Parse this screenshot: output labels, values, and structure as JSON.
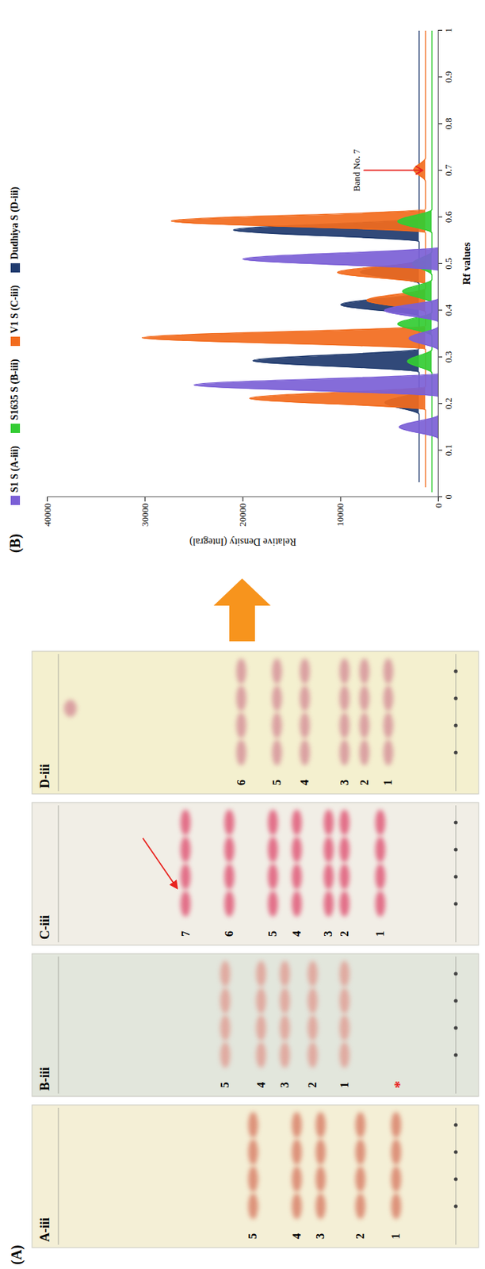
{
  "panel_a": {
    "label": "(A)",
    "plates": [
      {
        "label": "A-iii",
        "background": "#f4efd6",
        "color": "#d9826a",
        "bands": [
          {
            "label": "1",
            "rf": 0.15
          },
          {
            "label": "2",
            "rf": 0.24
          },
          {
            "label": "3",
            "rf": 0.34
          },
          {
            "label": "4",
            "rf": 0.4
          },
          {
            "label": "5",
            "rf": 0.51
          }
        ]
      },
      {
        "label": "B-iii",
        "background": "#e2e6dc",
        "color": "#e0a096",
        "bands": [
          {
            "label": "1",
            "rf": 0.28
          },
          {
            "label": "2",
            "rf": 0.36
          },
          {
            "label": "3",
            "rf": 0.43
          },
          {
            "label": "4",
            "rf": 0.49
          },
          {
            "label": "5",
            "rf": 0.58
          }
        ],
        "asterisk": {
          "text": "*",
          "rf": 0.15
        }
      },
      {
        "label": "C-iii",
        "background": "#f1eee6",
        "color": "#e05a78",
        "bands": [
          {
            "label": "1",
            "rf": 0.19
          },
          {
            "label": "2",
            "rf": 0.28
          },
          {
            "label": "3",
            "rf": 0.32
          },
          {
            "label": "4",
            "rf": 0.4
          },
          {
            "label": "5",
            "rf": 0.46
          },
          {
            "label": "6",
            "rf": 0.57
          },
          {
            "label": "7",
            "rf": 0.68
          }
        ],
        "arrow_to_band": "7"
      },
      {
        "label": "D-iii",
        "background": "#f4f0cf",
        "color": "#d6939a",
        "bands": [
          {
            "label": "1",
            "rf": 0.17
          },
          {
            "label": "2",
            "rf": 0.23
          },
          {
            "label": "3",
            "rf": 0.28
          },
          {
            "label": "4",
            "rf": 0.38
          },
          {
            "label": "5",
            "rf": 0.45
          },
          {
            "label": "6",
            "rf": 0.54
          }
        ],
        "spots": [
          0.97
        ]
      }
    ]
  },
  "chart_data": {
    "type": "area",
    "panel_label": "(B)",
    "x_label": "Rf values",
    "y_label": "Relative Density (Integral)",
    "xlim": [
      0,
      1
    ],
    "ylim": [
      0,
      40000
    ],
    "xticks": [
      0,
      0.1,
      0.2,
      0.3,
      0.4,
      0.5,
      0.6,
      0.7,
      0.8,
      0.9,
      1
    ],
    "yticks": [
      0,
      10000,
      20000,
      30000,
      40000
    ],
    "grid": false,
    "legend": "top",
    "series": [
      {
        "name": "S1 S (A-iii)",
        "color": "#7b5fd6",
        "x": [
          0,
          0.125,
          0.15,
          0.175,
          0.215,
          0.24,
          0.265,
          0.315,
          0.34,
          0.365,
          0.375,
          0.4,
          0.425,
          0.485,
          0.51,
          0.535,
          1
        ],
        "values": [
          0,
          0,
          4000,
          0,
          0,
          25000,
          0,
          0,
          3000,
          0,
          0,
          5500,
          0,
          0,
          20000,
          0,
          0
        ]
      },
      {
        "name": "S1635 S (B-iii)",
        "color": "#33cc33",
        "x": [
          0,
          0.255,
          0.28,
          0.305,
          0.335,
          0.36,
          0.385,
          0.405,
          0.43,
          0.455,
          0.465,
          0.49,
          0.515,
          0.555,
          0.58,
          0.605,
          1
        ],
        "values": [
          0,
          0,
          2500,
          0,
          0,
          3500,
          0,
          0,
          3000,
          0,
          0,
          2000,
          0,
          0,
          3500,
          0,
          0
        ]
      },
      {
        "name": "V1 S (C-iii)",
        "color": "#f26b1d",
        "x": [
          0,
          0.165,
          0.19,
          0.215,
          0.295,
          0.32,
          0.345,
          0.375,
          0.4,
          0.425,
          0.435,
          0.46,
          0.485,
          0.545,
          0.57,
          0.595,
          0.655,
          0.68,
          0.705,
          1
        ],
        "values": [
          0,
          0,
          18000,
          0,
          0,
          29000,
          0,
          0,
          6000,
          0,
          0,
          9000,
          0,
          0,
          26000,
          0,
          0,
          1200,
          0,
          0
        ]
      },
      {
        "name": "Dudhiya S (D-iii)",
        "color": "#1f3a6e",
        "x": [
          0,
          0.145,
          0.17,
          0.195,
          0.235,
          0.26,
          0.285,
          0.355,
          0.38,
          0.405,
          0.425,
          0.45,
          0.475,
          0.515,
          0.54,
          0.565,
          1
        ],
        "values": [
          0,
          0,
          3500,
          0,
          0,
          17000,
          0,
          0,
          8000,
          0,
          0,
          6000,
          0,
          0,
          19000,
          0,
          0
        ]
      }
    ],
    "annotations": [
      {
        "text": "Band No. 7",
        "x": 0.7,
        "color": "#e8231f"
      }
    ]
  }
}
